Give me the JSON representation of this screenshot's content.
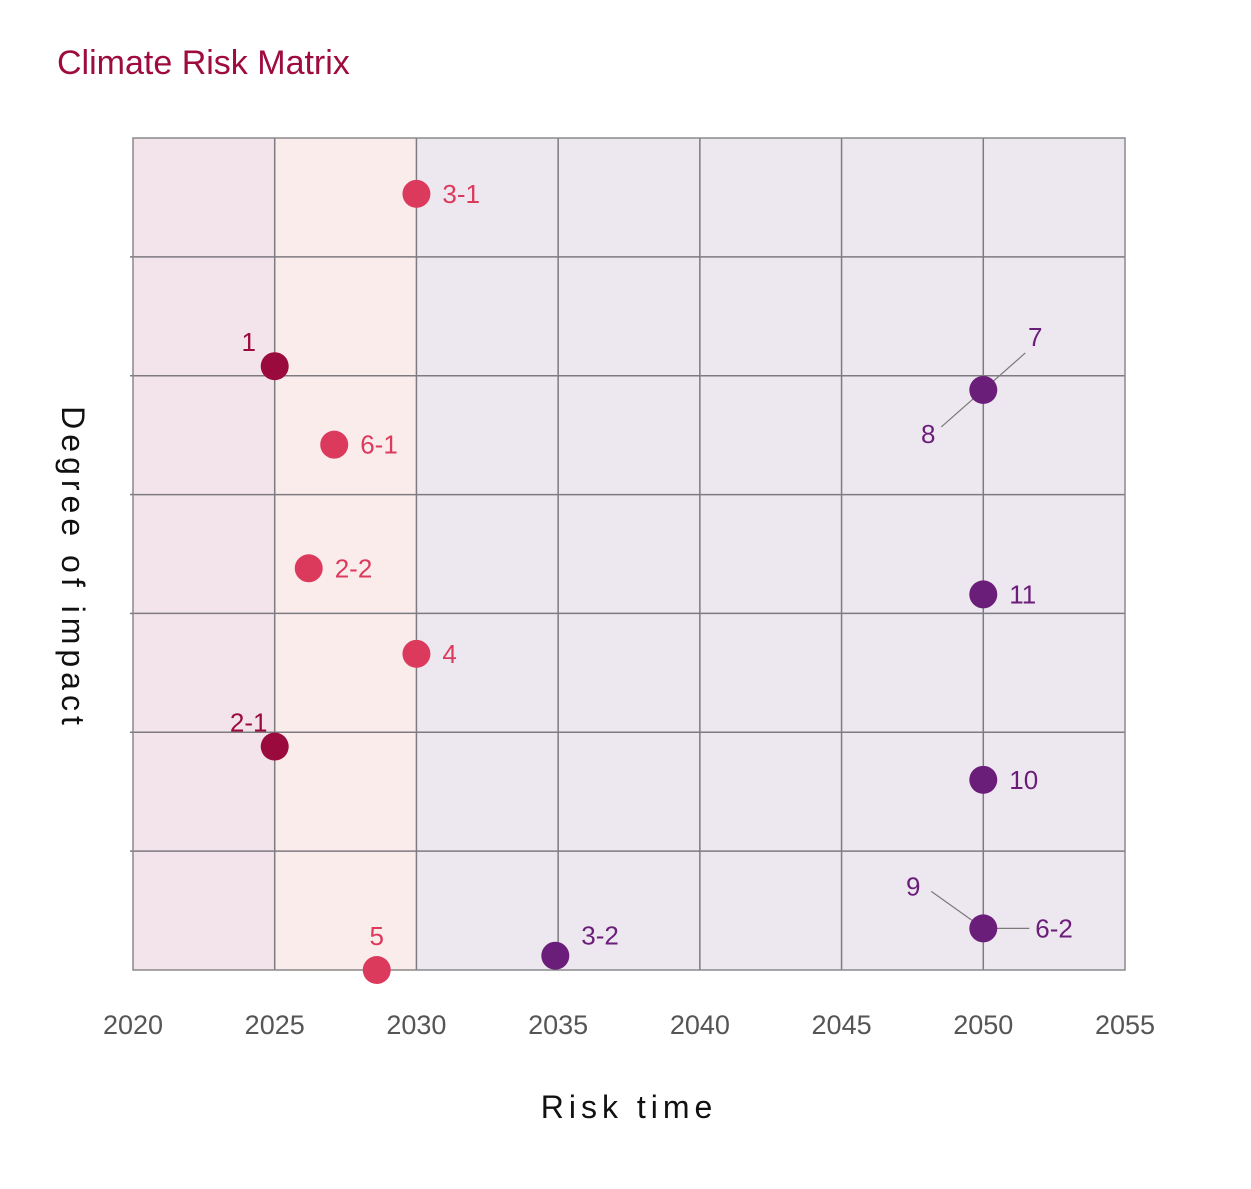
{
  "chart_data": {
    "type": "scatter",
    "title": "Climate Risk Matrix",
    "xlabel": "Risk time",
    "ylabel": "Degree of impact",
    "xlim": [
      2020,
      2055
    ],
    "x_ticks": [
      2020,
      2025,
      2030,
      2035,
      2040,
      2045,
      2050,
      2055
    ],
    "ylim": [
      0,
      7
    ],
    "y_tick_labels_shown": false,
    "grid": true,
    "background_bands": [
      {
        "from": 2020,
        "to": 2025,
        "color": "#f3e3ea"
      },
      {
        "from": 2025,
        "to": 2030,
        "color": "#fbecec"
      },
      {
        "from": 2030,
        "to": 2055,
        "color": "#ede7ef"
      }
    ],
    "colors": {
      "dark": "#9b0a3c",
      "pink": "#dc3a5c",
      "purple": "#6b1d7a"
    },
    "points": [
      {
        "label": "1",
        "x": 2025.0,
        "y": 5.08,
        "color": "#9b0a3c",
        "label_pos": "above-left"
      },
      {
        "label": "2-1",
        "x": 2025.0,
        "y": 1.88,
        "color": "#9b0a3c",
        "label_pos": "above-left"
      },
      {
        "label": "2-2",
        "x": 2026.2,
        "y": 3.38,
        "color": "#dc3a5c",
        "label_pos": "right"
      },
      {
        "label": "3-1",
        "x": 2030.0,
        "y": 6.53,
        "color": "#dc3a5c",
        "label_pos": "right"
      },
      {
        "label": "3-2",
        "x": 2034.9,
        "y": 0.12,
        "color": "#6b1d7a",
        "label_pos": "above-right"
      },
      {
        "label": "4",
        "x": 2030.0,
        "y": 2.66,
        "color": "#dc3a5c",
        "label_pos": "right"
      },
      {
        "label": "5",
        "x": 2028.6,
        "y": 0.0,
        "color": "#dc3a5c",
        "label_pos": "above"
      },
      {
        "label": "6-1",
        "x": 2027.1,
        "y": 4.42,
        "color": "#dc3a5c",
        "label_pos": "right"
      },
      {
        "label": "6-2",
        "x": 2050.0,
        "y": 0.35,
        "color": "#6b1d7a",
        "label_pos": "leader-right"
      },
      {
        "label": "7",
        "x": 2050.0,
        "y": 4.88,
        "color": "#6b1d7a",
        "label_pos": "leader-upper-right"
      },
      {
        "label": "8",
        "x": 2050.0,
        "y": 4.88,
        "color": "#6b1d7a",
        "label_pos": "leader-lower-left"
      },
      {
        "label": "9",
        "x": 2050.0,
        "y": 0.35,
        "color": "#6b1d7a",
        "label_pos": "leader-upper-left"
      },
      {
        "label": "10",
        "x": 2050.0,
        "y": 1.6,
        "color": "#6b1d7a",
        "label_pos": "right"
      },
      {
        "label": "11",
        "x": 2050.0,
        "y": 3.16,
        "color": "#6b1d7a",
        "label_pos": "right"
      }
    ]
  }
}
